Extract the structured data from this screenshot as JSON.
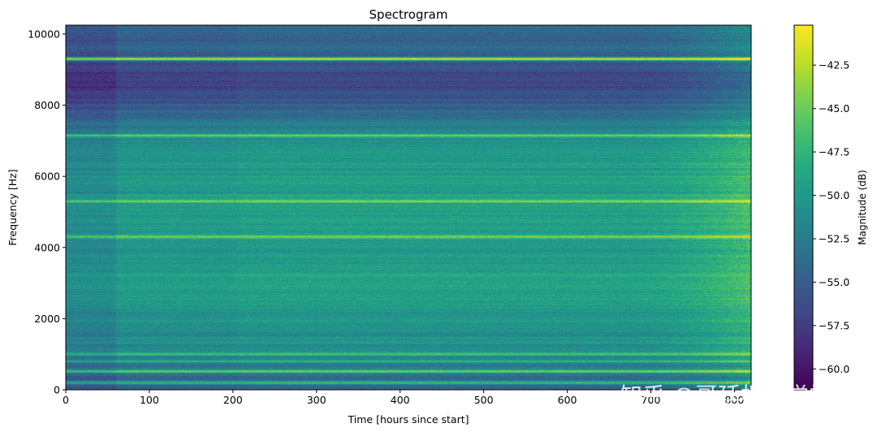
{
  "chart_data": {
    "type": "heatmap",
    "title": "Spectrogram",
    "xlabel": "Time [hours since start]",
    "ylabel": "Frequency [Hz]",
    "xlim": [
      0,
      820
    ],
    "ylim": [
      0,
      10250
    ],
    "x_ticks": [
      0,
      100,
      200,
      300,
      400,
      500,
      600,
      700,
      800
    ],
    "y_ticks": [
      0,
      2000,
      4000,
      6000,
      8000,
      10000
    ],
    "colorbar": {
      "label": "Magnitude (dB)",
      "colormap": "viridis",
      "range": [
        -61.2,
        -40.2
      ],
      "ticks": [
        -42.5,
        -45.0,
        -47.5,
        -50.0,
        -52.5,
        -55.0,
        -57.5,
        -60.0
      ]
    },
    "base_levels": [
      {
        "freq": 100,
        "db": -54.5
      },
      {
        "freq": 1000,
        "db": -51.0
      },
      {
        "freq": 2000,
        "db": -50.0
      },
      {
        "freq": 3000,
        "db": -49.0
      },
      {
        "freq": 4000,
        "db": -50.0
      },
      {
        "freq": 5000,
        "db": -49.0
      },
      {
        "freq": 6000,
        "db": -49.5
      },
      {
        "freq": 7000,
        "db": -50.5
      },
      {
        "freq": 7600,
        "db": -53.0
      },
      {
        "freq": 8200,
        "db": -56.0
      },
      {
        "freq": 8700,
        "db": -57.0
      },
      {
        "freq": 9500,
        "db": -54.5
      },
      {
        "freq": 10250,
        "db": -54.0
      }
    ],
    "persistent_lines": [
      {
        "freq": 9300,
        "db": -41.5
      },
      {
        "freq": 7150,
        "db": -45.5
      },
      {
        "freq": 5300,
        "db": -43.5
      },
      {
        "freq": 4300,
        "db": -44.0
      },
      {
        "freq": 1000,
        "db": -45.0
      },
      {
        "freq": 800,
        "db": -47.5
      },
      {
        "freq": 520,
        "db": -45.0
      },
      {
        "freq": 200,
        "db": -47.0
      }
    ],
    "early_segment_end_hours": 60,
    "late_bright_start_hours": 660
  },
  "watermark": "知乎 @哥廷根数学学派"
}
